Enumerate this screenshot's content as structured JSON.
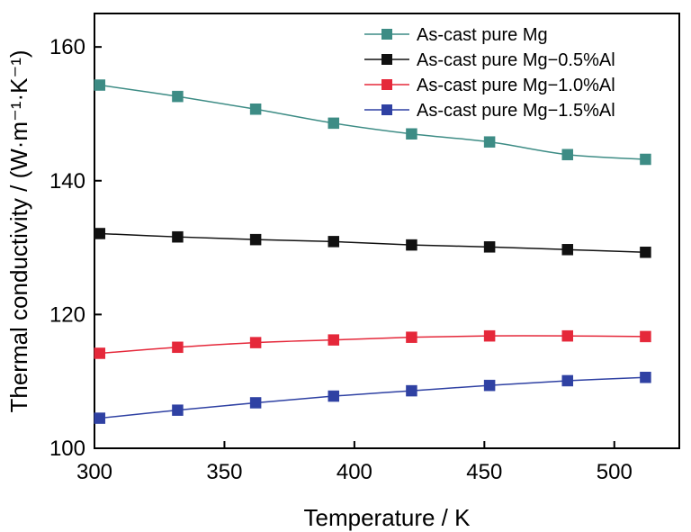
{
  "chart_data": {
    "type": "line",
    "title": "",
    "xlabel": "Temperature / K",
    "ylabel": "Thermal conductivity / (W·m⁻¹·K⁻¹)",
    "xlim": [
      300,
      525
    ],
    "ylim": [
      100,
      165
    ],
    "x_ticks": [
      300,
      350,
      400,
      450,
      500
    ],
    "y_ticks": [
      100,
      120,
      140,
      160
    ],
    "grid": false,
    "legend_position": "top-right",
    "x": [
      302,
      332,
      362,
      392,
      422,
      452,
      482,
      512
    ],
    "series": [
      {
        "name": "As-cast pure Mg",
        "color": "#3d8c85",
        "values": [
          154.3,
          152.6,
          150.7,
          148.6,
          147.0,
          145.8,
          143.9,
          143.2
        ]
      },
      {
        "name": "As-cast pure Mg−0.5%Al",
        "color": "#111111",
        "values": [
          132.1,
          131.6,
          131.2,
          130.9,
          130.4,
          130.1,
          129.7,
          129.3
        ]
      },
      {
        "name": "As-cast pure Mg−1.0%Al",
        "color": "#e5283a",
        "values": [
          114.2,
          115.1,
          115.8,
          116.2,
          116.6,
          116.8,
          116.8,
          116.7
        ]
      },
      {
        "name": "As-cast pure Mg−1.5%Al",
        "color": "#2f41a3",
        "values": [
          104.5,
          105.7,
          106.8,
          107.8,
          108.6,
          109.4,
          110.1,
          110.6
        ]
      }
    ]
  }
}
